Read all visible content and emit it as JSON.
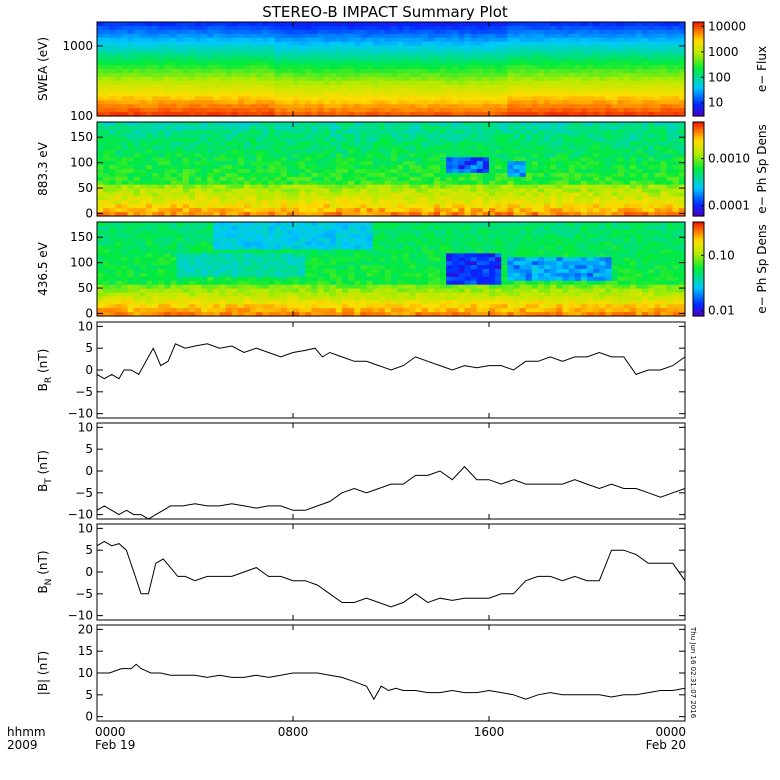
{
  "chart_data": [
    {
      "id": "swea",
      "type": "heatmap",
      "title": "STEREO-B IMPACT Summary Plot",
      "ylabel": "SWEA (eV)",
      "yscale": "log",
      "ylim": [
        100,
        2200
      ],
      "yticks": [
        100,
        1000
      ],
      "ytick_labels": [
        "100",
        "1000"
      ],
      "colorbar": {
        "label": "e− Flux",
        "scale": "log",
        "range": [
          3,
          15000
        ],
        "ticks": [
          10,
          100,
          1000,
          10000
        ],
        "tick_labels": [
          "10",
          "100",
          "1000",
          "10000"
        ]
      }
    },
    {
      "id": "pad883",
      "type": "heatmap",
      "ylabel": "883.3 eV",
      "ylim": [
        -5,
        180
      ],
      "yticks": [
        0,
        50,
        100,
        150
      ],
      "ytick_labels": [
        "0",
        "50",
        "100",
        "150"
      ],
      "colorbar": {
        "label": "e− Ph Sp Dens",
        "scale": "log",
        "range": [
          6e-05,
          0.006
        ],
        "ticks": [
          0.0001,
          0.001
        ],
        "tick_labels": [
          "0.0001",
          "0.0010"
        ]
      }
    },
    {
      "id": "pad436",
      "type": "heatmap",
      "ylabel": "436.5 eV",
      "ylim": [
        -5,
        180
      ],
      "yticks": [
        0,
        50,
        100,
        150
      ],
      "ytick_labels": [
        "0",
        "50",
        "100",
        "150"
      ],
      "colorbar": {
        "label": "e− Ph Sp Dens",
        "scale": "log",
        "range": [
          0.008,
          0.4
        ],
        "ticks": [
          0.01,
          0.1
        ],
        "tick_labels": [
          "0.01",
          "0.10"
        ]
      }
    },
    {
      "id": "br",
      "type": "line",
      "ylabel_main": "B",
      "ylabel_sub": "R",
      "ylabel_unit": " (nT)",
      "ylim": [
        -11,
        11
      ],
      "yticks": [
        -10,
        -5,
        0,
        5,
        10
      ],
      "ytick_labels": [
        "−10",
        "−5",
        "0",
        "5",
        "10"
      ],
      "x": [
        0,
        0.3,
        0.6,
        0.9,
        1.1,
        1.4,
        1.7,
        1.9,
        2.1,
        2.3,
        2.6,
        2.9,
        3.2,
        3.6,
        4,
        4.5,
        5,
        5.5,
        6,
        6.5,
        7,
        7.5,
        8,
        8.5,
        8.9,
        9.2,
        9.5,
        10,
        10.5,
        11,
        11.5,
        12,
        12.5,
        13,
        13.5,
        14,
        14.5,
        15,
        15.5,
        16,
        16.5,
        17,
        17.5,
        18,
        18.5,
        19,
        19.5,
        20,
        20.5,
        21,
        21.5,
        22,
        22.5,
        23,
        23.5,
        24
      ],
      "values": [
        -1,
        -2,
        -1,
        -2,
        0,
        0,
        -1,
        1,
        3,
        5,
        1,
        2,
        6,
        5,
        5.5,
        6,
        5,
        5.5,
        4,
        5,
        4,
        3,
        4,
        4.5,
        5,
        3,
        4,
        3,
        2,
        2,
        1,
        0,
        1,
        3,
        2,
        1,
        0,
        1,
        0.5,
        1,
        1,
        0,
        2,
        2,
        3,
        2,
        3,
        3,
        4,
        3,
        3,
        -1,
        0,
        0,
        1,
        3
      ]
    },
    {
      "id": "bt",
      "type": "line",
      "ylabel_main": "B",
      "ylabel_sub": "T",
      "ylabel_unit": " (nT)",
      "ylim": [
        -11,
        11
      ],
      "yticks": [
        -10,
        -5,
        0,
        5,
        10
      ],
      "ytick_labels": [
        "−10",
        "−5",
        "0",
        "5",
        "10"
      ],
      "x": [
        0,
        0.3,
        0.6,
        0.9,
        1.2,
        1.5,
        1.8,
        2.1,
        2.4,
        2.7,
        3,
        3.5,
        4,
        4.5,
        5,
        5.5,
        6,
        6.5,
        7,
        7.5,
        8,
        8.5,
        9,
        9.5,
        10,
        10.5,
        11,
        11.5,
        12,
        12.5,
        13,
        13.5,
        14,
        14.5,
        15,
        15.5,
        16,
        16.5,
        17,
        17.5,
        18,
        18.5,
        19,
        19.5,
        20,
        20.5,
        21,
        21.5,
        22,
        22.5,
        23,
        23.5,
        24
      ],
      "values": [
        -9,
        -8,
        -9,
        -10,
        -9,
        -10,
        -10,
        -11,
        -10,
        -9,
        -8,
        -8,
        -7.5,
        -8,
        -8,
        -7.5,
        -8,
        -8.5,
        -8,
        -8,
        -9,
        -9,
        -8,
        -7,
        -5,
        -4,
        -5,
        -4,
        -3,
        -3,
        -1,
        -1,
        0,
        -2,
        1,
        -2,
        -2,
        -3,
        -2,
        -3,
        -3,
        -3,
        -3,
        -2,
        -3,
        -4,
        -3,
        -4,
        -4,
        -5,
        -6,
        -5,
        -4
      ]
    },
    {
      "id": "bn",
      "type": "line",
      "ylabel_main": "B",
      "ylabel_sub": "N",
      "ylabel_unit": " (nT)",
      "ylim": [
        -11,
        11
      ],
      "yticks": [
        -10,
        -5,
        0,
        5,
        10
      ],
      "ytick_labels": [
        "−10",
        "−5",
        "0",
        "5",
        "10"
      ],
      "x": [
        0,
        0.3,
        0.6,
        0.9,
        1.2,
        1.5,
        1.8,
        2.1,
        2.4,
        2.7,
        3,
        3.3,
        3.6,
        4,
        4.5,
        5,
        5.5,
        6,
        6.5,
        7,
        7.5,
        8,
        8.5,
        9,
        9.5,
        10,
        10.5,
        11,
        11.5,
        12,
        12.5,
        13,
        13.5,
        14,
        14.5,
        15,
        15.5,
        16,
        16.5,
        17,
        17.5,
        18,
        18.5,
        19,
        19.5,
        20,
        20.5,
        21,
        21.5,
        22,
        22.5,
        23,
        23.5,
        24
      ],
      "values": [
        6,
        7,
        6,
        6.5,
        5,
        0,
        -5,
        -5,
        2,
        3,
        1,
        -1,
        -1,
        -2,
        -1,
        -1,
        -1,
        0,
        1,
        -1,
        -1,
        -2,
        -2,
        -3,
        -5,
        -7,
        -7,
        -6,
        -7,
        -8,
        -7,
        -5,
        -7,
        -6,
        -6.5,
        -6,
        -6,
        -6,
        -5,
        -5,
        -2,
        -1,
        -1,
        -2,
        -1,
        -2,
        -2,
        5,
        5,
        4,
        2,
        2,
        2,
        -2
      ]
    },
    {
      "id": "bmag",
      "type": "line",
      "ylabel_main": "|B| (nT)",
      "ylim": [
        -1,
        21
      ],
      "yticks": [
        0,
        5,
        10,
        15,
        20
      ],
      "ytick_labels": [
        "0",
        "5",
        "10",
        "15",
        "20"
      ],
      "side_text": "Thu Jun 16 02:31:07 2016",
      "x": [
        0,
        0.5,
        1,
        1.4,
        1.6,
        1.8,
        2,
        2.2,
        2.6,
        3,
        3.5,
        4,
        4.5,
        5,
        5.5,
        6,
        6.5,
        7,
        7.5,
        8,
        8.5,
        9,
        9.5,
        10,
        10.5,
        11,
        11.3,
        11.6,
        11.9,
        12.2,
        12.5,
        13,
        13.5,
        14,
        14.5,
        15,
        15.5,
        16,
        16.5,
        17,
        17.5,
        18,
        18.5,
        19,
        19.5,
        20,
        20.5,
        21,
        21.5,
        22,
        22.5,
        23,
        23.5,
        24
      ],
      "values": [
        10,
        10,
        11,
        11,
        12,
        11,
        10.5,
        10,
        10,
        9.5,
        9.5,
        9.5,
        9,
        9.5,
        9,
        9,
        9.5,
        9,
        9.5,
        10,
        10,
        10,
        9.5,
        9,
        8,
        7,
        4,
        7,
        6,
        6.5,
        6,
        6,
        5.5,
        5.5,
        6,
        5.5,
        5.5,
        6,
        5.5,
        5,
        4,
        5,
        5.5,
        5,
        5,
        5,
        5,
        4.5,
        5,
        5,
        5.5,
        6,
        6,
        6.5
      ]
    }
  ],
  "xaxis": {
    "range_hours": [
      0,
      24
    ],
    "ticks": [
      0,
      8,
      16,
      24
    ],
    "tick_labels": [
      "0000",
      "0800",
      "1600",
      "0000"
    ],
    "date_labels": [
      "Feb 19",
      "Feb 20"
    ],
    "left_labels": [
      "hhmm",
      "2009"
    ]
  }
}
